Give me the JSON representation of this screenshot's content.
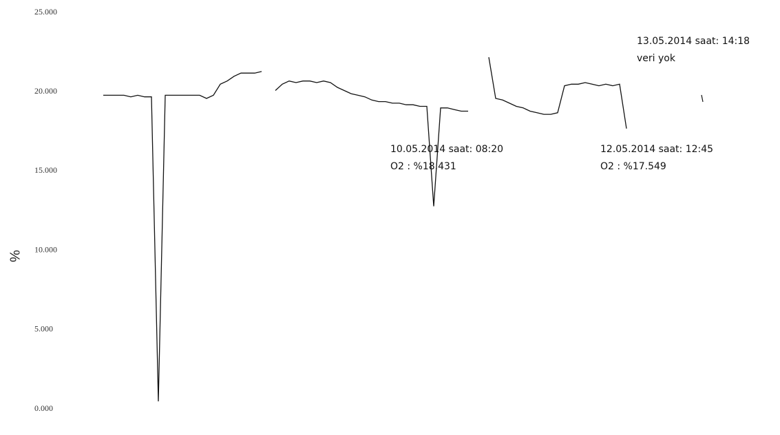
{
  "chart_data": {
    "type": "line",
    "ylabel": "%",
    "ylim": [
      0,
      25
    ],
    "yticks": [
      {
        "value": 0,
        "label": "0.000"
      },
      {
        "value": 5,
        "label": "5.000"
      },
      {
        "value": 10,
        "label": "10.000"
      },
      {
        "value": 15,
        "label": "15.000"
      },
      {
        "value": 20,
        "label": "20.000"
      },
      {
        "value": 25,
        "label": "25.000"
      }
    ],
    "color": "#111111",
    "values": [
      19.6,
      19.6,
      19.6,
      19.6,
      19.5,
      19.6,
      19.5,
      19.5,
      0.3,
      19.6,
      19.6,
      19.6,
      19.6,
      19.6,
      19.6,
      19.4,
      19.6,
      20.3,
      20.5,
      20.8,
      21.0,
      21.0,
      21.0,
      21.1,
      null,
      19.9,
      20.3,
      20.5,
      20.4,
      20.5,
      20.5,
      20.4,
      20.5,
      20.4,
      20.1,
      19.9,
      19.7,
      19.6,
      19.5,
      19.3,
      19.2,
      19.2,
      19.1,
      19.1,
      19.0,
      19.0,
      18.9,
      18.9,
      12.6,
      18.8,
      18.8,
      18.7,
      18.6,
      18.6,
      null,
      null,
      22.0,
      19.4,
      19.3,
      19.1,
      18.9,
      18.8,
      18.6,
      18.5,
      18.4,
      18.4,
      18.5,
      20.2,
      20.3,
      20.3,
      20.4,
      20.3,
      20.2,
      20.3,
      20.2,
      20.3,
      17.5,
      null,
      null,
      null,
      null,
      null,
      null,
      null,
      null,
      null,
      null,
      19.4
    ],
    "annotations": [
      [
        "13.05.2014 saat: 14:18",
        "veri yok"
      ],
      [
        "10.05.2014 saat: 08:20",
        "O2 : %18.431"
      ],
      [
        "12.05.2014 saat: 12:45",
        "O2 : %17.549"
      ]
    ]
  }
}
